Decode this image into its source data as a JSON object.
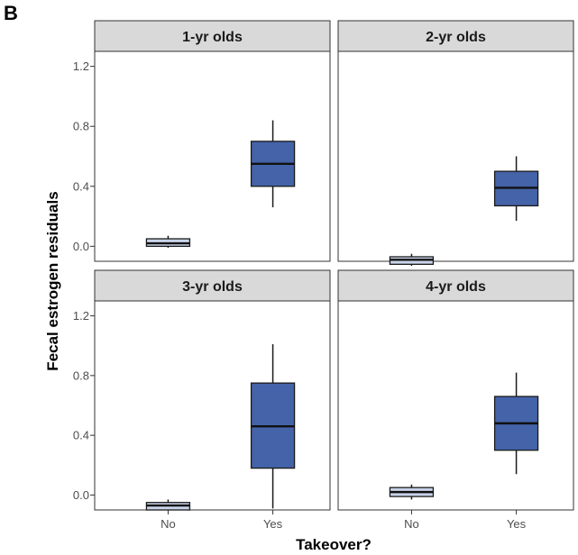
{
  "panel_label": "B",
  "colors": {
    "no": "#c9d4ea",
    "yes": "#4463a8",
    "strip_fill": "#d9d9d9",
    "border": "#333333"
  },
  "chart_data": {
    "type": "boxplot",
    "xlabel": "Takeover?",
    "ylabel": "Fecal estrogen residuals",
    "categories": [
      "No",
      "Yes"
    ],
    "ylim": [
      -0.1,
      1.3
    ],
    "yticks": [
      0.0,
      0.4,
      0.8,
      1.2
    ],
    "ytick_labels": [
      "0.0",
      "0.4",
      "0.8",
      "1.2"
    ],
    "panels": [
      {
        "title": "1-yr olds",
        "boxes": [
          {
            "category": "No",
            "min": -0.01,
            "q1": 0.0,
            "median": 0.02,
            "q3": 0.05,
            "max": 0.07
          },
          {
            "category": "Yes",
            "min": 0.26,
            "q1": 0.4,
            "median": 0.55,
            "q3": 0.7,
            "max": 0.84
          }
        ]
      },
      {
        "title": "2-yr olds",
        "boxes": [
          {
            "category": "No",
            "min": -0.13,
            "q1": -0.12,
            "median": -0.09,
            "q3": -0.07,
            "max": -0.05
          },
          {
            "category": "Yes",
            "min": 0.17,
            "q1": 0.27,
            "median": 0.39,
            "q3": 0.5,
            "max": 0.6
          }
        ]
      },
      {
        "title": "3-yr olds",
        "boxes": [
          {
            "category": "No",
            "min": -0.1,
            "q1": -0.1,
            "median": -0.07,
            "q3": -0.05,
            "max": -0.03
          },
          {
            "category": "Yes",
            "min": -0.09,
            "q1": 0.18,
            "median": 0.46,
            "q3": 0.75,
            "max": 1.01
          }
        ]
      },
      {
        "title": "4-yr olds",
        "boxes": [
          {
            "category": "No",
            "min": -0.03,
            "q1": -0.01,
            "median": 0.02,
            "q3": 0.05,
            "max": 0.07
          },
          {
            "category": "Yes",
            "min": 0.14,
            "q1": 0.3,
            "median": 0.48,
            "q3": 0.66,
            "max": 0.82
          }
        ]
      }
    ]
  }
}
